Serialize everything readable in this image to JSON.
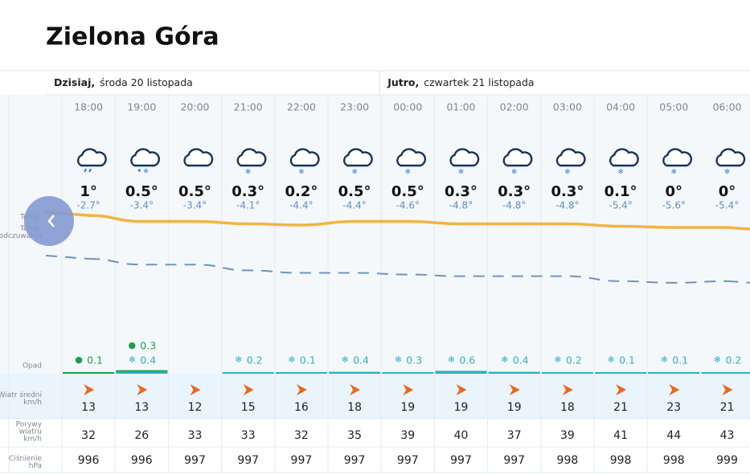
{
  "title": "Zielona Góra",
  "days": [
    {
      "name": "Dzisiaj,",
      "date": "środa 20 listopada"
    },
    {
      "name": "Jutro,",
      "date": "czwartek 21 listopada"
    }
  ],
  "row_labels": {
    "temp": [
      "Temp."
    ],
    "feels": [
      "Temp.",
      "odczuwalna"
    ],
    "precip": [
      "Opad"
    ],
    "wind": [
      "Wiatr średni",
      "km/h"
    ],
    "gust": [
      "Porywy",
      "wiatru",
      "km/h"
    ],
    "pressure": [
      "Ciśnienie",
      "hPa"
    ]
  },
  "hours": [
    {
      "time": "18:00",
      "temp": 1,
      "temp_label": "1°",
      "feels": -2.7,
      "feels_label": "-2.7°",
      "rain": 0.1,
      "wind": 13,
      "gust": 32,
      "pressure": 996
    },
    {
      "time": "19:00",
      "temp": 0.5,
      "temp_label": "0.5°",
      "feels": -3.4,
      "feels_label": "-3.4°",
      "rain": 0.3,
      "snow": 0.4,
      "wind": 13,
      "gust": 26,
      "pressure": 996
    },
    {
      "time": "20:00",
      "temp": 0.5,
      "temp_label": "0.5°",
      "feels": -3.4,
      "feels_label": "-3.4°",
      "wind": 12,
      "gust": 33,
      "pressure": 997
    },
    {
      "time": "21:00",
      "temp": 0.3,
      "temp_label": "0.3°",
      "feels": -4.1,
      "feels_label": "-4.1°",
      "snow": 0.2,
      "wind": 15,
      "gust": 33,
      "pressure": 997
    },
    {
      "time": "22:00",
      "temp": 0.2,
      "temp_label": "0.2°",
      "feels": -4.4,
      "feels_label": "-4.4°",
      "snow": 0.1,
      "wind": 16,
      "gust": 32,
      "pressure": 997
    },
    {
      "time": "23:00",
      "temp": 0.5,
      "temp_label": "0.5°",
      "feels": -4.4,
      "feels_label": "-4.4°",
      "snow": 0.4,
      "wind": 18,
      "gust": 35,
      "pressure": 997
    },
    {
      "time": "00:00",
      "temp": 0.5,
      "temp_label": "0.5°",
      "feels": -4.6,
      "feels_label": "-4.6°",
      "snow": 0.3,
      "wind": 19,
      "gust": 39,
      "pressure": 997
    },
    {
      "time": "01:00",
      "temp": 0.3,
      "temp_label": "0.3°",
      "feels": -4.8,
      "feels_label": "-4.8°",
      "snow": 0.6,
      "wind": 19,
      "gust": 40,
      "pressure": 997
    },
    {
      "time": "02:00",
      "temp": 0.3,
      "temp_label": "0.3°",
      "feels": -4.8,
      "feels_label": "-4.8°",
      "snow": 0.4,
      "wind": 19,
      "gust": 37,
      "pressure": 997
    },
    {
      "time": "03:00",
      "temp": 0.3,
      "temp_label": "0.3°",
      "feels": -4.8,
      "feels_label": "-4.8°",
      "snow": 0.2,
      "wind": 18,
      "gust": 39,
      "pressure": 998
    },
    {
      "time": "04:00",
      "temp": 0.1,
      "temp_label": "0.1°",
      "feels": -5.4,
      "feels_label": "-5.4°",
      "snow": 0.1,
      "wind": 21,
      "gust": 41,
      "pressure": 998
    },
    {
      "time": "05:00",
      "temp": 0,
      "temp_label": "0°",
      "feels": -5.6,
      "feels_label": "-5.6°",
      "snow": 0.1,
      "wind": 23,
      "gust": 44,
      "pressure": 998
    },
    {
      "time": "06:00",
      "temp": 0,
      "temp_label": "0°",
      "feels": -5.4,
      "feels_label": "-5.4°",
      "snow": 0.2,
      "wind": 21,
      "gust": 43,
      "pressure": 999
    }
  ]
}
